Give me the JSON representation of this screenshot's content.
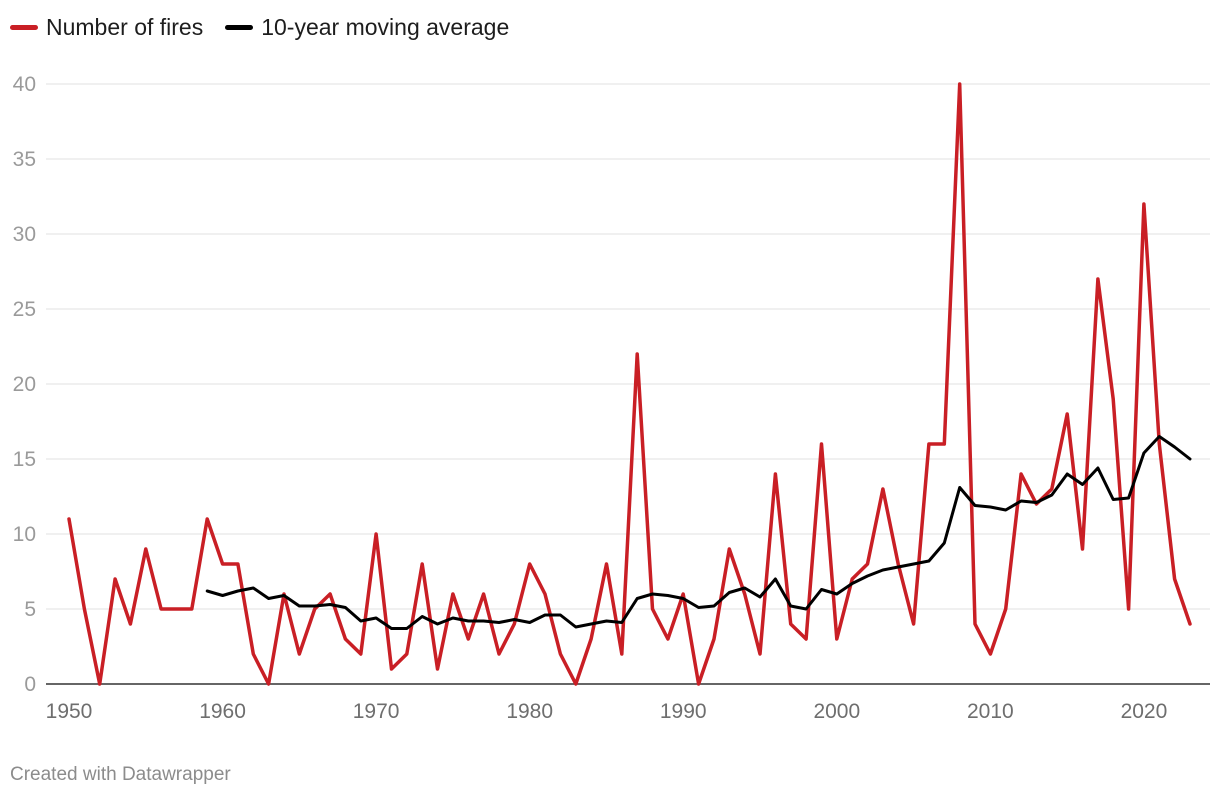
{
  "chart_data": {
    "type": "line",
    "title": "",
    "xlabel": "",
    "ylabel": "",
    "xlim": [
      1950,
      2023
    ],
    "ylim": [
      0,
      40
    ],
    "yticks": [
      0,
      5,
      10,
      15,
      20,
      25,
      30,
      35,
      40
    ],
    "xticks": [
      1950,
      1960,
      1970,
      1980,
      1990,
      2000,
      2010,
      2020
    ],
    "grid": "horizontal",
    "legend_position": "top-left",
    "series": [
      {
        "name": "Number of fires",
        "color": "#c91f25",
        "x": [
          1950,
          1951,
          1952,
          1953,
          1954,
          1955,
          1956,
          1957,
          1958,
          1959,
          1960,
          1961,
          1962,
          1963,
          1964,
          1965,
          1966,
          1967,
          1968,
          1969,
          1970,
          1971,
          1972,
          1973,
          1974,
          1975,
          1976,
          1977,
          1978,
          1979,
          1980,
          1981,
          1982,
          1983,
          1984,
          1985,
          1986,
          1987,
          1988,
          1989,
          1990,
          1991,
          1992,
          1993,
          1994,
          1995,
          1996,
          1997,
          1998,
          1999,
          2000,
          2001,
          2002,
          2003,
          2004,
          2005,
          2006,
          2007,
          2008,
          2009,
          2010,
          2011,
          2012,
          2013,
          2014,
          2015,
          2016,
          2017,
          2018,
          2019,
          2020,
          2021,
          2022,
          2023
        ],
        "values": [
          11,
          5,
          0,
          7,
          4,
          9,
          5,
          5,
          5,
          11,
          8,
          8,
          2,
          0,
          6,
          2,
          5,
          6,
          3,
          2,
          10,
          1,
          2,
          8,
          1,
          6,
          3,
          6,
          2,
          4,
          8,
          6,
          2,
          0,
          3,
          8,
          2,
          22,
          5,
          3,
          6,
          0,
          3,
          9,
          6,
          2,
          14,
          4,
          3,
          16,
          3,
          7,
          8,
          13,
          8,
          4,
          16,
          16,
          40,
          4,
          2,
          5,
          14,
          12,
          13,
          18,
          9,
          27,
          19,
          5,
          32,
          16,
          7,
          4
        ]
      },
      {
        "name": "10-year moving average",
        "color": "#000000",
        "x": [
          1959,
          1960,
          1961,
          1962,
          1963,
          1964,
          1965,
          1966,
          1967,
          1968,
          1969,
          1970,
          1971,
          1972,
          1973,
          1974,
          1975,
          1976,
          1977,
          1978,
          1979,
          1980,
          1981,
          1982,
          1983,
          1984,
          1985,
          1986,
          1987,
          1988,
          1989,
          1990,
          1991,
          1992,
          1993,
          1994,
          1995,
          1996,
          1997,
          1998,
          1999,
          2000,
          2001,
          2002,
          2003,
          2004,
          2005,
          2006,
          2007,
          2008,
          2009,
          2010,
          2011,
          2012,
          2013,
          2014,
          2015,
          2016,
          2017,
          2018,
          2019,
          2020,
          2021,
          2022,
          2023
        ],
        "values": [
          6.2,
          5.9,
          6.2,
          6.4,
          5.7,
          5.9,
          5.2,
          5.2,
          5.3,
          5.1,
          4.2,
          4.4,
          3.7,
          3.7,
          4.5,
          4.0,
          4.4,
          4.2,
          4.2,
          4.1,
          4.3,
          4.1,
          4.6,
          4.6,
          3.8,
          4.0,
          4.2,
          4.1,
          5.7,
          6.0,
          5.9,
          5.7,
          5.1,
          5.2,
          6.1,
          6.4,
          5.8,
          7.0,
          5.2,
          5.0,
          6.3,
          6.0,
          6.7,
          7.2,
          7.6,
          7.8,
          8.0,
          8.2,
          9.4,
          13.1,
          11.9,
          11.8,
          11.6,
          12.2,
          12.1,
          12.6,
          14.0,
          13.3,
          14.4,
          12.3,
          12.4,
          15.4,
          16.5,
          15.8,
          15.0
        ]
      }
    ]
  },
  "footer": {
    "credit": "Created with Datawrapper"
  }
}
